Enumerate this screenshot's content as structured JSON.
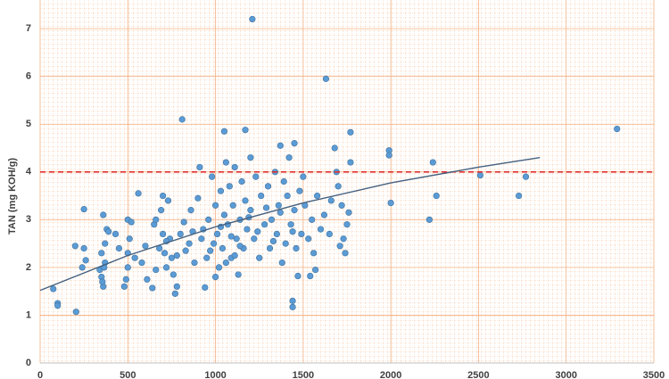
{
  "chart_data": {
    "type": "scatter",
    "y_label": "TAN (mg KOH/g)",
    "color": "#5b9bd5",
    "grid": true,
    "minor_grid": true,
    "grid_color": "#f4b183",
    "xlim": [
      0,
      3500
    ],
    "xticks": [
      0,
      500,
      1000,
      1500,
      2000,
      2500,
      3000,
      3500
    ],
    "ylim": [
      0,
      7.6
    ],
    "yticks": [
      0,
      1,
      2,
      3,
      4,
      5,
      6,
      7
    ],
    "x": [
      1210,
      1630,
      810,
      3290,
      1770,
      1050,
      1170,
      1990,
      1990,
      1680,
      1450,
      1370,
      2240,
      2510,
      2770,
      2730,
      2260,
      2220,
      2000,
      1770,
      1760,
      1750,
      1740,
      1710,
      1570,
      1540,
      1470,
      1440,
      1440,
      75,
      100,
      100,
      205,
      250,
      200,
      250,
      240,
      260,
      350,
      360,
      370,
      350,
      370,
      380,
      390,
      360,
      340,
      355,
      365,
      480,
      490,
      500,
      500,
      510,
      500,
      520,
      540,
      560,
      600,
      610,
      640,
      660,
      680,
      690,
      700,
      700,
      710,
      720,
      730,
      740,
      750,
      760,
      770,
      780,
      800,
      820,
      850,
      860,
      880,
      900,
      910,
      930,
      940,
      950,
      960,
      980,
      990,
      1000,
      1010,
      1020,
      1030,
      1040,
      1050,
      1060,
      1070,
      1080,
      1090,
      1100,
      1110,
      1120,
      1130,
      1140,
      1150,
      1160,
      1170,
      1180,
      1200,
      1200,
      1220,
      1230,
      1250,
      1260,
      1280,
      1300,
      1310,
      1320,
      1340,
      1350,
      1360,
      1380,
      1390,
      1400,
      1410,
      1420,
      1430,
      1450,
      1460,
      1480,
      1490,
      1500,
      1510,
      1530,
      1550,
      1560,
      1580,
      1600,
      1620,
      1650,
      1660,
      1690,
      1700,
      1720,
      1730,
      650,
      720,
      780,
      830,
      870,
      920,
      970,
      1030,
      1090,
      1140,
      1190,
      1240,
      1290,
      1330,
      1370,
      1440,
      1000,
      1060,
      1110,
      660,
      580,
      430,
      450
    ],
    "values": [
      7.2,
      5.95,
      5.1,
      4.9,
      4.83,
      4.85,
      4.88,
      4.45,
      4.35,
      4.5,
      4.6,
      4.55,
      4.2,
      3.93,
      3.9,
      3.5,
      3.5,
      3.0,
      3.35,
      4.2,
      3.15,
      2.9,
      2.3,
      2.45,
      1.95,
      1.82,
      1.82,
      1.3,
      1.17,
      1.55,
      1.25,
      1.2,
      1.07,
      3.22,
      2.45,
      2.4,
      2.0,
      2.15,
      1.8,
      1.6,
      2.1,
      2.3,
      2.5,
      2.8,
      2.75,
      3.1,
      1.95,
      1.7,
      2.0,
      1.6,
      1.75,
      2.0,
      2.3,
      2.6,
      3.0,
      2.95,
      2.2,
      3.55,
      2.45,
      1.75,
      1.57,
      1.95,
      2.4,
      3.2,
      3.5,
      2.7,
      2.3,
      2.0,
      3.4,
      2.6,
      2.2,
      1.85,
      1.45,
      1.6,
      2.7,
      2.95,
      2.5,
      3.2,
      2.1,
      3.45,
      4.1,
      2.8,
      1.58,
      2.2,
      3.0,
      3.9,
      2.5,
      3.3,
      2.7,
      2.0,
      3.6,
      2.4,
      3.1,
      4.2,
      2.9,
      3.7,
      2.2,
      3.3,
      4.1,
      2.6,
      1.85,
      3.0,
      3.8,
      2.4,
      3.4,
      2.8,
      4.3,
      3.2,
      2.6,
      3.9,
      2.2,
      3.5,
      2.9,
      3.7,
      2.4,
      3.0,
      4.0,
      2.7,
      3.3,
      2.1,
      3.8,
      2.5,
      3.5,
      4.3,
      2.9,
      3.2,
      2.4,
      3.6,
      2.7,
      3.9,
      3.3,
      2.6,
      3.0,
      2.3,
      3.5,
      2.8,
      3.1,
      2.7,
      3.4,
      4.0,
      3.7,
      3.3,
      2.6,
      2.9,
      2.55,
      2.25,
      2.35,
      2.75,
      2.6,
      2.35,
      2.85,
      2.65,
      2.45,
      3.05,
      2.75,
      3.25,
      2.55,
      3.15,
      2.75,
      1.8,
      2.1,
      2.25,
      3.0,
      2.1,
      2.7,
      2.4
    ],
    "trendline": {
      "color": "#44607f",
      "x": [
        0,
        500,
        1000,
        1500,
        2000,
        2500,
        2850
      ],
      "values": [
        1.52,
        2.25,
        2.85,
        3.35,
        3.77,
        4.1,
        4.3
      ]
    },
    "reference_line": {
      "value": 4,
      "color": "#e03030"
    }
  }
}
